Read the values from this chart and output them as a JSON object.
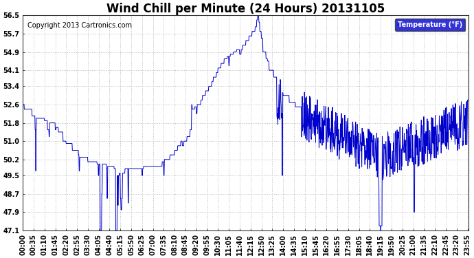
{
  "title": "Wind Chill per Minute (24 Hours) 20131105",
  "ylabel": "Temperature (°F)",
  "copyright": "Copyright 2013 Cartronics.com",
  "line_color": "#0000CC",
  "background_color": "#ffffff",
  "grid_color": "#bbbbbb",
  "legend_bg": "#0000CC",
  "legend_text_color": "#ffffff",
  "yticks": [
    47.1,
    47.9,
    48.7,
    49.5,
    50.2,
    51.0,
    51.8,
    52.6,
    53.4,
    54.1,
    54.9,
    55.7,
    56.5
  ],
  "ymin": 47.1,
  "ymax": 56.5,
  "title_fontsize": 12,
  "tick_fontsize": 7,
  "copyright_fontsize": 7,
  "xtick_interval": 35
}
